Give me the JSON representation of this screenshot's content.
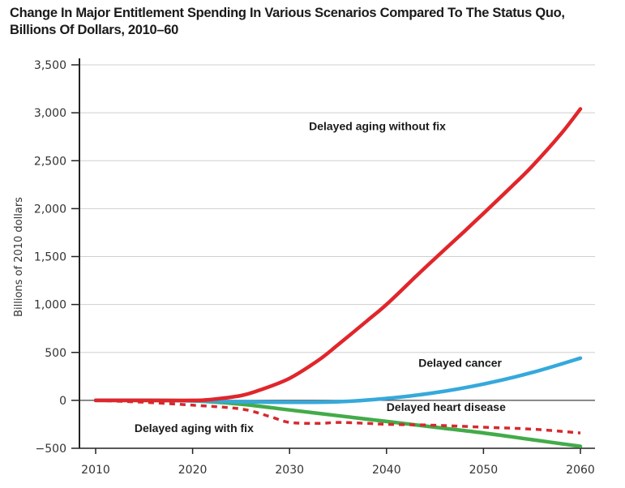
{
  "title_line1": "Change In Major Entitlement Spending In Various Scenarios Compared To The Status Quo,",
  "title_line2": "Billions Of Dollars, 2010–60",
  "chart_data": {
    "type": "line",
    "title": "Change In Major Entitlement Spending In Various Scenarios Compared To The Status Quo, Billions Of Dollars, 2010–60",
    "xlabel": "",
    "ylabel": "Billions of 2010 dollars",
    "xlim": [
      2010,
      2060
    ],
    "ylim": [
      -500,
      3500
    ],
    "xticks": [
      2010,
      2020,
      2030,
      2040,
      2050,
      2060
    ],
    "xtick_labels": [
      "2010",
      "2020",
      "2030",
      "2040",
      "2050",
      "2060"
    ],
    "yticks": [
      -500,
      0,
      500,
      1000,
      1500,
      2000,
      2500,
      3000,
      3500
    ],
    "ytick_labels": [
      "−500",
      "0",
      "500",
      "1,000",
      "1,500",
      "2,000",
      "2,500",
      "3,000",
      "3,500"
    ],
    "grid": "horizontal",
    "legend": "none (direct labels)",
    "series": [
      {
        "name": "Delayed aging without fix",
        "color": "#e0262b",
        "style": "solid",
        "x": [
          2010,
          2015,
          2020,
          2022,
          2025,
          2027,
          2030,
          2033,
          2035,
          2038,
          2040,
          2043,
          2045,
          2048,
          2050,
          2053,
          2055,
          2058,
          2060
        ],
        "y": [
          0,
          0,
          0,
          10,
          50,
          110,
          230,
          420,
          580,
          830,
          1000,
          1290,
          1480,
          1760,
          1950,
          2240,
          2440,
          2780,
          3040
        ]
      },
      {
        "name": "Delayed cancer",
        "color": "#35a9db",
        "style": "solid",
        "x": [
          2010,
          2015,
          2020,
          2025,
          2030,
          2035,
          2040,
          2045,
          2050,
          2055,
          2060
        ],
        "y": [
          0,
          0,
          -5,
          -15,
          -20,
          -15,
          20,
          80,
          170,
          290,
          440
        ]
      },
      {
        "name": "Delayed heart disease",
        "color": "#43ab49",
        "style": "solid",
        "x": [
          2010,
          2015,
          2020,
          2025,
          2030,
          2035,
          2040,
          2045,
          2050,
          2055,
          2060
        ],
        "y": [
          0,
          0,
          -5,
          -40,
          -100,
          -160,
          -220,
          -280,
          -340,
          -410,
          -480
        ]
      },
      {
        "name": "Delayed aging with fix",
        "color": "#d8282d",
        "style": "dashed",
        "x": [
          2010,
          2015,
          2020,
          2025,
          2028,
          2030,
          2033,
          2035,
          2038,
          2040,
          2045,
          2050,
          2055,
          2060
        ],
        "y": [
          0,
          -20,
          -50,
          -90,
          -170,
          -230,
          -240,
          -230,
          -240,
          -250,
          -260,
          -280,
          -300,
          -340
        ]
      }
    ],
    "labels": [
      {
        "text": "Delayed aging without fix",
        "x": 2032,
        "y": 2820
      },
      {
        "text": "Delayed cancer",
        "x": 2043.3,
        "y": 350
      },
      {
        "text": "Delayed heart disease",
        "x": 2040,
        "y": -110
      },
      {
        "text": "Delayed aging with fix",
        "x": 2014,
        "y": -330
      }
    ]
  }
}
